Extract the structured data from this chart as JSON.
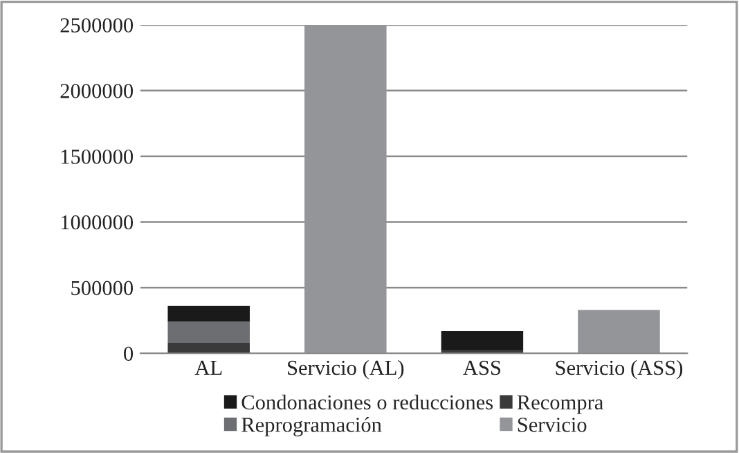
{
  "chart_data": {
    "type": "bar",
    "stacked": true,
    "categories": [
      "AL",
      "Servicio (AL)",
      "ASS",
      "Servicio (ASS)"
    ],
    "series": [
      {
        "name": "Recompra",
        "color": "#3a3a3a",
        "values": [
          80000,
          null,
          20000,
          null
        ]
      },
      {
        "name": "Reprogramación",
        "color": "#6d6e71",
        "values": [
          160000,
          null,
          null,
          null
        ]
      },
      {
        "name": "Condonaciones o reducciones",
        "color": "#1a1a1a",
        "values": [
          120000,
          null,
          150000,
          null
        ]
      },
      {
        "name": "Servicio",
        "color": "#939598",
        "values": [
          null,
          2500000,
          null,
          330000
        ]
      }
    ],
    "ylim": [
      0,
      2500000
    ],
    "yticks": [
      0,
      500000,
      1000000,
      1500000,
      2000000,
      2500000
    ],
    "grid": "y",
    "legend": "bottom"
  }
}
